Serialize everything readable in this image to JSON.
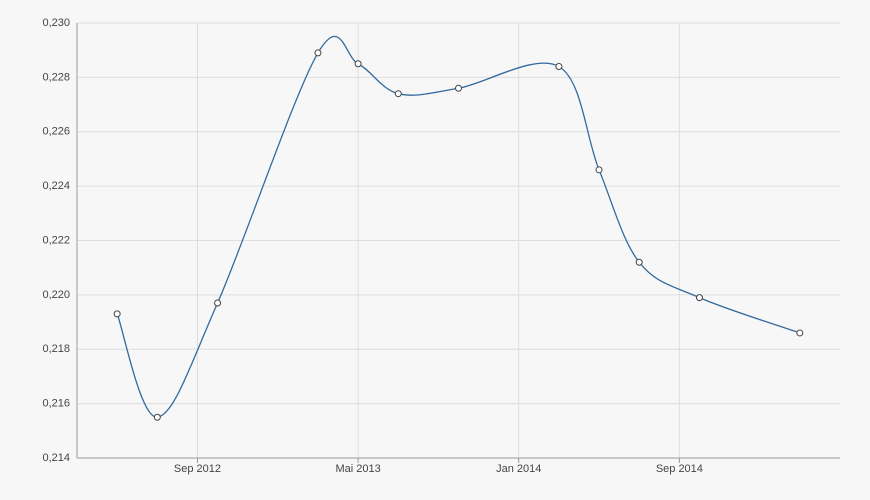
{
  "chart_data": {
    "type": "line",
    "smooth": true,
    "grid": true,
    "x": [
      "2012-05",
      "2012-07",
      "2012-10",
      "2013-03",
      "2013-05",
      "2013-07",
      "2013-10",
      "2014-03",
      "2014-05",
      "2014-07",
      "2014-10",
      "2015-03"
    ],
    "series": [
      {
        "color": "#336a9e",
        "values": [
          0.2193,
          0.2155,
          0.2197,
          0.2289,
          0.2285,
          0.2274,
          0.2276,
          0.2284,
          0.2246,
          0.2212,
          0.2199,
          0.2186
        ]
      }
    ],
    "xlim": [
      "2012-03",
      "2015-05"
    ],
    "xticks": [
      {
        "value": "2012-09",
        "label": "Sep 2012"
      },
      {
        "value": "2013-05",
        "label": "Mai 2013"
      },
      {
        "value": "2014-01",
        "label": "Jan 2014"
      },
      {
        "value": "2014-09",
        "label": "Sep 2014"
      }
    ],
    "ylim": [
      0.214,
      0.23
    ],
    "yticks": [
      {
        "value": 0.214,
        "label": "0,214"
      },
      {
        "value": 0.216,
        "label": "0,216"
      },
      {
        "value": 0.218,
        "label": "0,218"
      },
      {
        "value": 0.22,
        "label": "0,220"
      },
      {
        "value": 0.222,
        "label": "0,222"
      },
      {
        "value": 0.224,
        "label": "0,224"
      },
      {
        "value": 0.226,
        "label": "0,226"
      },
      {
        "value": 0.228,
        "label": "0,228"
      },
      {
        "value": 0.23,
        "label": "0,230"
      }
    ]
  }
}
